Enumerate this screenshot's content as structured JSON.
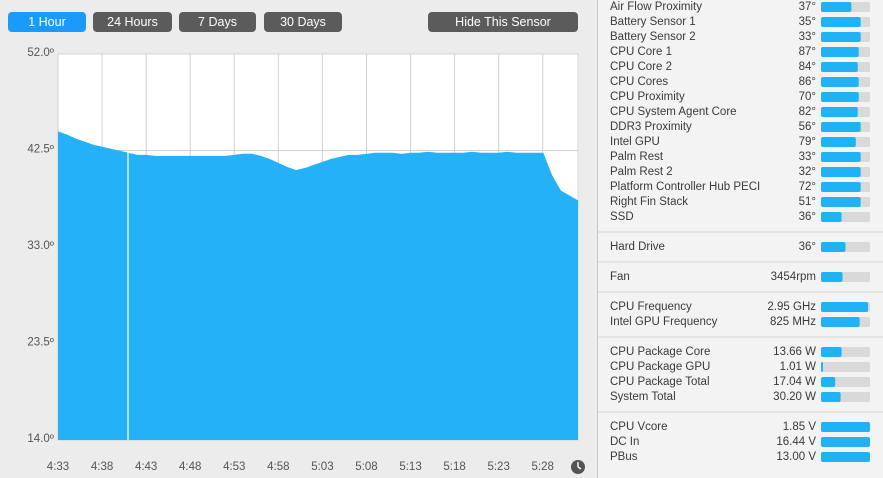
{
  "buttons": [
    "1 Hour",
    "24 Hours",
    "7 Days",
    "30 Days",
    "Hide This Sensor"
  ],
  "active_button": 0,
  "chart_data": {
    "type": "area",
    "color": "#24b1f8",
    "grid": true,
    "x": [
      "4:33",
      "4:34",
      "4:35",
      "4:36",
      "4:37",
      "4:38",
      "4:39",
      "4:40",
      "4:41",
      "4:42",
      "4:43",
      "4:44",
      "4:45",
      "4:46",
      "4:47",
      "4:48",
      "4:49",
      "4:50",
      "4:51",
      "4:52",
      "4:53",
      "4:54",
      "4:55",
      "4:56",
      "4:57",
      "4:58",
      "4:59",
      "5:00",
      "5:01",
      "5:02",
      "5:03",
      "5:04",
      "5:05",
      "5:06",
      "5:07",
      "5:08",
      "5:09",
      "5:10",
      "5:11",
      "5:12",
      "5:13",
      "5:14",
      "5:15",
      "5:16",
      "5:17",
      "5:18",
      "5:19",
      "5:20",
      "5:21",
      "5:22",
      "5:23",
      "5:24",
      "5:25",
      "5:26",
      "5:27",
      "5:28",
      "5:29",
      "5:30",
      "5:31",
      "5:32"
    ],
    "values": [
      44.3,
      44.0,
      43.6,
      43.3,
      43.0,
      42.8,
      42.6,
      42.4,
      42.2,
      42.0,
      42.0,
      41.9,
      41.9,
      41.9,
      41.9,
      41.9,
      41.9,
      41.9,
      41.9,
      41.9,
      42.0,
      42.1,
      42.1,
      41.9,
      41.6,
      41.2,
      40.8,
      40.5,
      40.7,
      41.0,
      41.3,
      41.6,
      41.8,
      42.0,
      42.0,
      42.1,
      42.2,
      42.2,
      42.2,
      42.1,
      42.2,
      42.2,
      42.3,
      42.2,
      42.2,
      42.2,
      42.2,
      42.3,
      42.2,
      42.2,
      42.2,
      42.3,
      42.2,
      42.2,
      42.2,
      42.2,
      40.0,
      38.5,
      38.0,
      37.5
    ],
    "xlim": [
      "4:33",
      "5:32"
    ],
    "xticks": [
      "4:33",
      "4:38",
      "4:43",
      "4:48",
      "4:53",
      "4:58",
      "5:03",
      "5:08",
      "5:13",
      "5:18",
      "5:23",
      "5:28"
    ],
    "ylim": [
      14,
      52
    ],
    "yticks": [
      {
        "value": 52,
        "label": "52.0º"
      },
      {
        "value": 42.5,
        "label": "42.5º"
      },
      {
        "value": 33,
        "label": "33.0º"
      },
      {
        "value": 23.5,
        "label": "23.5º"
      },
      {
        "value": 14,
        "label": "14.0º"
      }
    ]
  },
  "sensor_groups": [
    [
      {
        "name": "Air Flow Proximity",
        "value": "37°",
        "level": 62
      },
      {
        "name": "Battery Sensor 1",
        "value": "35°",
        "level": 81
      },
      {
        "name": "Battery Sensor 2",
        "value": "33°",
        "level": 81
      },
      {
        "name": "CPU Core 1",
        "value": "87°",
        "level": 77
      },
      {
        "name": "CPU Core 2",
        "value": "84°",
        "level": 75
      },
      {
        "name": "CPU Cores",
        "value": "86°",
        "level": 77
      },
      {
        "name": "CPU Proximity",
        "value": "70°",
        "level": 77
      },
      {
        "name": "CPU System Agent Core",
        "value": "82°",
        "level": 75
      },
      {
        "name": "DDR3 Proximity",
        "value": "56°",
        "level": 81
      },
      {
        "name": "Intel GPU",
        "value": "79°",
        "level": 71
      },
      {
        "name": "Palm Rest",
        "value": "33°",
        "level": 81
      },
      {
        "name": "Palm Rest 2",
        "value": "32°",
        "level": 81
      },
      {
        "name": "Platform Controller Hub PECI",
        "value": "72°",
        "level": 81
      },
      {
        "name": "Right Fin Stack",
        "value": "51°",
        "level": 81
      },
      {
        "name": "SSD",
        "value": "36°",
        "level": 42
      }
    ],
    [
      {
        "name": "Hard Drive",
        "value": "36°",
        "level": 50
      }
    ],
    [
      {
        "name": "Fan",
        "value": "3454rpm",
        "level": 44
      }
    ],
    [
      {
        "name": "CPU Frequency",
        "value": "2.95 GHz",
        "level": 96
      },
      {
        "name": "Intel GPU Frequency",
        "value": "825 MHz",
        "level": 79
      }
    ],
    [
      {
        "name": "CPU Package Core",
        "value": "13.66 W",
        "level": 42
      },
      {
        "name": "CPU Package GPU",
        "value": "1.01 W",
        "level": 4
      },
      {
        "name": "CPU Package Total",
        "value": "17.04 W",
        "level": 29
      },
      {
        "name": "System Total",
        "value": "30.20 W",
        "level": 40
      }
    ],
    [
      {
        "name": "CPU Vcore",
        "value": "1.85 V",
        "level": 100
      },
      {
        "name": "DC In",
        "value": "16.44 V",
        "level": 100
      },
      {
        "name": "PBus",
        "value": "13.00 V",
        "level": 100
      }
    ]
  ]
}
